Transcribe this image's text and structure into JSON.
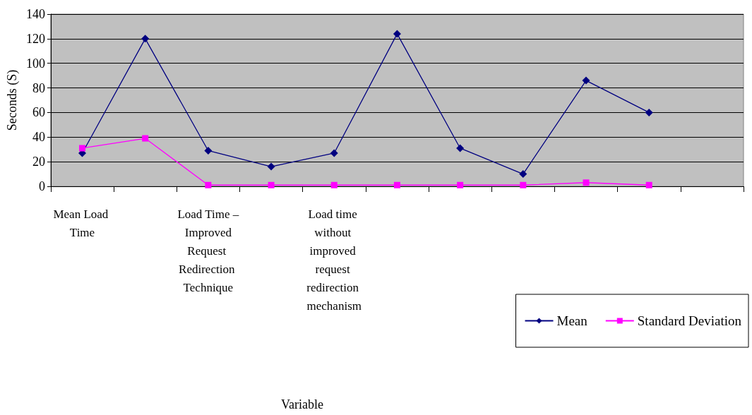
{
  "chart_data": {
    "type": "line",
    "annotations": [
      "Variable"
    ],
    "ylabel": "Seconds (S)",
    "categories": [
      "Mean Load Time",
      null,
      "Load Time – Improved Request Redirection Technique",
      null,
      "Load time without improved request redirection mechanism",
      null,
      null,
      null,
      null,
      null,
      null
    ],
    "series": [
      {
        "name": "Mean",
        "color": "#000080",
        "marker": "diamond",
        "values": [
          27,
          120,
          29,
          16,
          27,
          124,
          31,
          10,
          86,
          60,
          null
        ]
      },
      {
        "name": "Standard Deviation",
        "color": "#ff00ff",
        "marker": "square",
        "values": [
          31,
          39,
          1,
          1,
          1,
          1,
          1,
          1,
          3,
          1,
          null
        ]
      }
    ],
    "ylim": [
      0,
      140
    ],
    "yticks": [
      0,
      20,
      40,
      60,
      80,
      100,
      120,
      140
    ],
    "grid": "y",
    "legend": "bottom right"
  }
}
